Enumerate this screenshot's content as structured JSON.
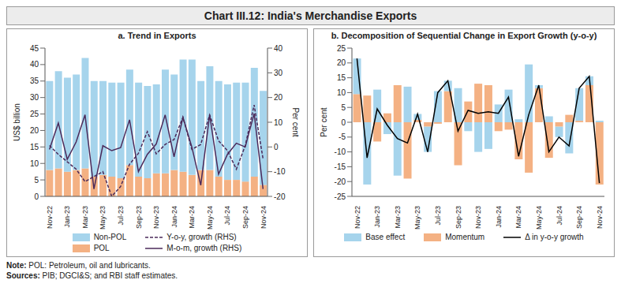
{
  "title": "Chart III.12: India's Merchandise Exports",
  "note": "Note: POL: Petroleum, oil and lubricants.",
  "sources": "Sources: PIB; DGCI&S; and RBI staff estimates.",
  "chart_data": [
    {
      "type": "bar",
      "title": "a. Trend in Exports",
      "stacked": true,
      "grid": false,
      "categories": [
        "Nov-22",
        null,
        "Jan-23",
        null,
        "Mar-23",
        null,
        "May-23",
        null,
        "Jul-23",
        null,
        "Sep-23",
        null,
        "Nov-23",
        null,
        "Jan-24",
        null,
        "Mar-24",
        null,
        "May-24",
        null,
        "Jul-24",
        null,
        "Sep-24",
        null,
        "Nov-24"
      ],
      "ylabel": "US$ billion",
      "y2label": "Per cent",
      "ylim": [
        0,
        45
      ],
      "yticks": [
        0,
        5,
        10,
        15,
        20,
        25,
        30,
        35,
        40,
        45
      ],
      "y2lim": [
        -20,
        40
      ],
      "y2ticks": [
        -20,
        -10,
        0,
        10,
        20,
        30,
        40
      ],
      "series": [
        {
          "name": "Non-POL",
          "type": "bar",
          "color": "#a6d4ec",
          "values": [
            27,
            29.5,
            28.5,
            29,
            33.5,
            29,
            28.5,
            28.5,
            29,
            29,
            28.5,
            28,
            27,
            31.5,
            29,
            34,
            35,
            27,
            31.5,
            29,
            29,
            29.5,
            30,
            33,
            28.5
          ]
        },
        {
          "name": "POL",
          "type": "bar",
          "color": "#f4b183",
          "values": [
            8,
            8.5,
            7.5,
            8,
            8.5,
            6,
            6.5,
            6,
            5.5,
            9.5,
            6,
            5.5,
            7,
            7,
            8,
            7.5,
            6.5,
            8,
            8,
            6,
            5,
            5,
            4.5,
            6,
            3.5
          ]
        },
        {
          "name": "Y-o-y, growth (RHS)",
          "type": "line",
          "axis": "y2",
          "line_style": "dashed",
          "color": "#4b2a5a",
          "values": [
            0.6,
            -3,
            -6,
            -9,
            -14,
            -12,
            -10,
            -20,
            -16,
            -7,
            -2.6,
            6.2,
            -2.8,
            1,
            3,
            12,
            -1,
            1,
            13,
            2.5,
            -1.5,
            -9,
            0.5,
            17,
            -4.8
          ]
        },
        {
          "name": "M-o-m, growth (RHS)",
          "type": "line",
          "axis": "y2",
          "line_style": "solid",
          "color": "#4b2a5a",
          "values": [
            -1,
            9.7,
            -5,
            2,
            13,
            -17,
            0.5,
            -1.5,
            -0.3,
            11,
            -10,
            -3,
            1.2,
            13,
            -4,
            12,
            0,
            -15.5,
            13,
            -11,
            -3,
            1.5,
            0,
            13.5,
            -17
          ]
        }
      ]
    },
    {
      "type": "bar",
      "title": "b. Decomposition of Sequential Change in Export Growth (y-o-y)",
      "stacked": true,
      "grid": false,
      "categories": [
        "Nov-22",
        null,
        "Jan-23",
        null,
        "Mar-23",
        null,
        "May-23",
        null,
        "Jul-23",
        null,
        "Sep-23",
        null,
        "Nov-23",
        null,
        "Jan-24",
        null,
        "Mar-24",
        null,
        "May-24",
        null,
        "Jul-24",
        null,
        "Sep-24",
        null,
        "Nov-24"
      ],
      "ylabel": "Per cent",
      "ylim": [
        -25,
        25
      ],
      "yticks": [
        -25,
        -20,
        -15,
        -10,
        -5,
        0,
        5,
        10,
        15,
        20,
        25
      ],
      "series": [
        {
          "name": "Base effect",
          "type": "bar",
          "color": "#a6d4ec",
          "values": [
            12,
            -21,
            11,
            -4,
            -18,
            12,
            2,
            -8.5,
            10.5,
            3.5,
            11.5,
            -3,
            -10,
            -9,
            6,
            11,
            1,
            19.5,
            1,
            2,
            -3.5,
            -10.5,
            11,
            3,
            0.5
          ]
        },
        {
          "name": "Momentum",
          "type": "bar",
          "color": "#f4b183",
          "values": [
            9.5,
            9,
            -6.5,
            3,
            12.5,
            -19,
            0.8,
            -1.5,
            -0.5,
            10.5,
            -14.5,
            7,
            13,
            12.5,
            -3,
            -2.5,
            -12.5,
            -17,
            11.5,
            -12,
            -1.5,
            2.5,
            0.5,
            12.5,
            -21
          ]
        },
        {
          "name": "Δ in y-o-y growth",
          "type": "line",
          "line_style": "solid",
          "color": "#000000",
          "values": [
            21.5,
            -12,
            4.5,
            -1,
            -5.5,
            -7,
            2.8,
            -10,
            10,
            14,
            -3,
            4,
            3,
            3.5,
            3,
            8.5,
            -11.5,
            2.5,
            12.5,
            -10,
            -5,
            -8,
            11.5,
            15.5,
            -20.5
          ]
        }
      ]
    }
  ]
}
